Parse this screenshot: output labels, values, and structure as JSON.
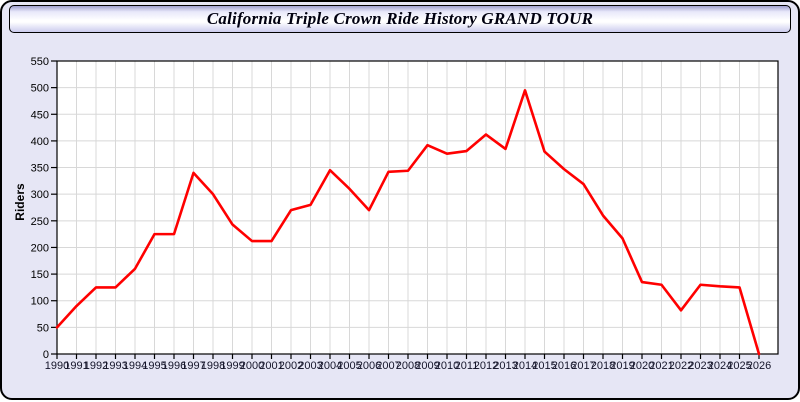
{
  "window": {
    "title": "California Triple Crown Ride History GRAND TOUR",
    "background_color": "#e6e6f5",
    "titlebar_gradient_top": "#9f9fd0",
    "titlebar_gradient_mid": "#ffffff",
    "titlebar_gradient_bottom": "#ccccee"
  },
  "chart_data": {
    "type": "line",
    "title": "California Triple Crown Ride History GRAND TOUR",
    "xlabel": "",
    "ylabel": "Riders",
    "x": [
      1990,
      1991,
      1992,
      1993,
      1994,
      1995,
      1996,
      1997,
      1998,
      1999,
      2000,
      2001,
      2002,
      2003,
      2004,
      2005,
      2006,
      2007,
      2008,
      2009,
      2010,
      2011,
      2012,
      2013,
      2014,
      2015,
      2016,
      2017,
      2018,
      2019,
      2020,
      2021,
      2022,
      2023,
      2024,
      2025,
      2026
    ],
    "series": [
      {
        "name": "Riders",
        "color": "#ff0000",
        "values": [
          50,
          90,
          125,
          125,
          160,
          225,
          225,
          340,
          300,
          243,
          212,
          212,
          270,
          280,
          345,
          310,
          270,
          342,
          344,
          392,
          376,
          381,
          412,
          385,
          495,
          380,
          347,
          319,
          260,
          217,
          135,
          130,
          82,
          130,
          127,
          125,
          0
        ]
      }
    ],
    "ylim": [
      0,
      550
    ],
    "ytick_step": 50,
    "grid": true,
    "legend": "none",
    "plot_background": "#ffffff",
    "gridline_color": "#d8d8d8",
    "axis_color": "#000000",
    "xtick_label_color": "#15152a",
    "ytick_label_color": "#000000"
  }
}
